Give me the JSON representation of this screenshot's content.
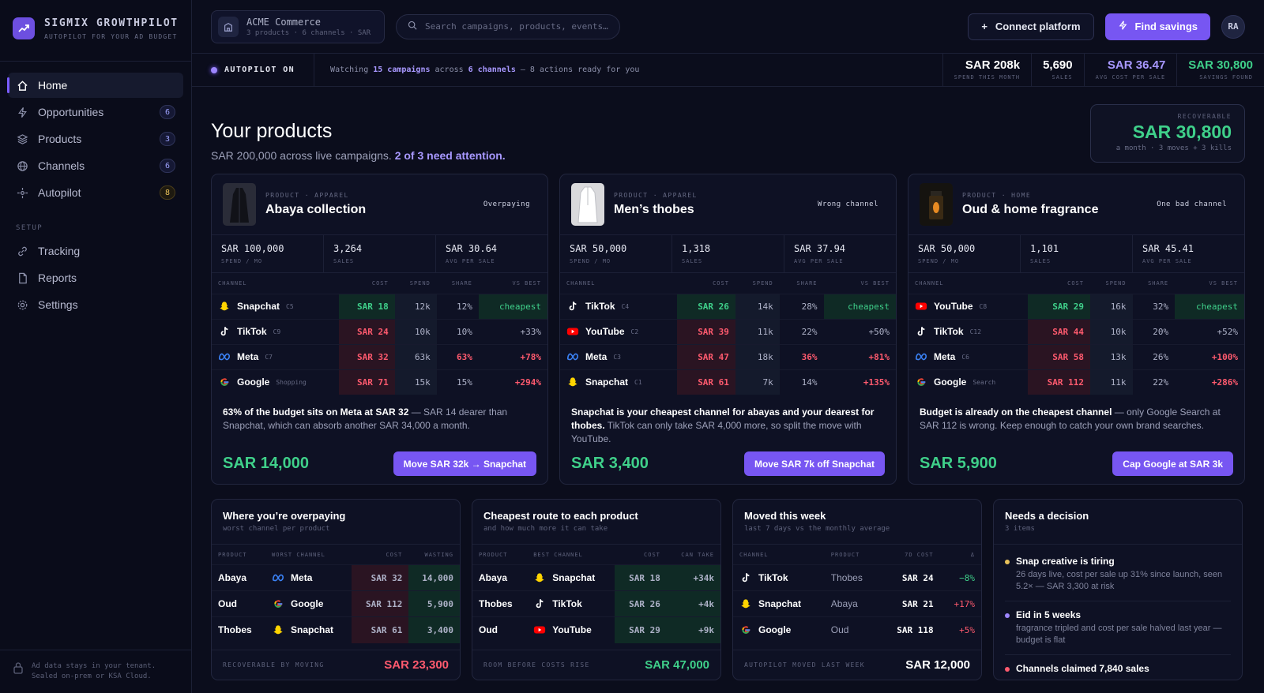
{
  "brand": {
    "name": "SIGMIX GROWTHPILOT",
    "tagline": "AUTOPILOT FOR YOUR AD BUDGET"
  },
  "nav": {
    "items": [
      {
        "label": "Home",
        "icon": "home-icon"
      },
      {
        "label": "Opportunities",
        "icon": "bolt-icon",
        "badge": "6"
      },
      {
        "label": "Products",
        "icon": "layers-icon",
        "badge": "3"
      },
      {
        "label": "Channels",
        "icon": "globe-icon",
        "badge": "6"
      },
      {
        "label": "Autopilot",
        "icon": "crosshair-icon",
        "badge": "8"
      }
    ],
    "section": "SETUP",
    "setup": [
      {
        "label": "Tracking",
        "icon": "link-icon"
      },
      {
        "label": "Reports",
        "icon": "file-icon"
      },
      {
        "label": "Settings",
        "icon": "gear-icon"
      }
    ],
    "footer": "Ad data stays in your tenant. Sealed on-prem or KSA Cloud."
  },
  "topbar": {
    "workspace_name": "ACME Commerce",
    "workspace_sub": "3 products · 6 channels · SAR",
    "search_placeholder": "Search campaigns, products, events…",
    "connect_label": "Connect platform",
    "savings_label": "Find savings",
    "avatar": "RA"
  },
  "status": {
    "autopilot": "AUTOPILOT ON",
    "watch_pre": "Watching ",
    "watch_campaigns": "15 campaigns",
    "watch_mid": " across ",
    "watch_channels": "6 channels",
    "watch_post": " — 8 actions ready for you",
    "kpis": [
      {
        "value": "SAR 208k",
        "label": "SPEND THIS MONTH",
        "color": "#ffffff"
      },
      {
        "value": "5,690",
        "label": "SALES",
        "color": "#ffffff"
      },
      {
        "value": "SAR 36.47",
        "label": "AVG COST PER SALE",
        "color": "#a898ff"
      },
      {
        "value": "SAR 30,800",
        "label": "SAVINGS FOUND",
        "color": "#3fd08a"
      }
    ]
  },
  "hero": {
    "title": "Your products",
    "sub_pre": "SAR 200,000 across live campaigns. ",
    "sub_em": "2 of 3 need attention.",
    "recover_label": "RECOVERABLE",
    "recover_value": "SAR 30,800",
    "recover_sub": "a month · 3 moves + 3 kills"
  },
  "table_headers": [
    "CHANNEL",
    "COST",
    "SPEND",
    "SHARE",
    "VS BEST"
  ],
  "products": [
    {
      "category": "PRODUCT · APPAREL",
      "title": "Abaya collection",
      "tag": "Overpaying",
      "stats": [
        {
          "value": "SAR 100,000",
          "label": "SPEND / MO"
        },
        {
          "value": "3,264",
          "label": "SALES"
        },
        {
          "value": "SAR 30.64",
          "label": "AVG PER SALE"
        }
      ],
      "rows": [
        {
          "channel": "Snapchat",
          "code": "C5",
          "icon": "snapchat-icon",
          "cost": "SAR 18",
          "spend": "12k",
          "share": "12%",
          "vs": "cheapest",
          "best": true
        },
        {
          "channel": "TikTok",
          "code": "C9",
          "icon": "tiktok-icon",
          "cost": "SAR 24",
          "spend": "10k",
          "share": "10%",
          "vs": "+33%",
          "best": false,
          "plain": true
        },
        {
          "channel": "Meta",
          "code": "C7",
          "icon": "meta-icon",
          "cost": "SAR 32",
          "spend": "63k",
          "share": "63%",
          "vs": "+78%",
          "best": false,
          "hot": true
        },
        {
          "channel": "Google",
          "code": "Shopping",
          "icon": "google-icon",
          "cost": "SAR 71",
          "spend": "15k",
          "share": "15%",
          "vs": "+294%",
          "best": false
        }
      ],
      "body_b": "63% of the budget sits on Meta at SAR 32",
      "body": " — SAR 14 dearer than Snapchat, which can absorb another SAR 34,000 a month.",
      "saving": "SAR 14,000",
      "action": "Move SAR 32k → Snapchat"
    },
    {
      "category": "PRODUCT · APPAREL",
      "title": "Men’s thobes",
      "tag": "Wrong channel",
      "stats": [
        {
          "value": "SAR 50,000",
          "label": "SPEND / MO"
        },
        {
          "value": "1,318",
          "label": "SALES"
        },
        {
          "value": "SAR 37.94",
          "label": "AVG PER SALE"
        }
      ],
      "rows": [
        {
          "channel": "TikTok",
          "code": "C4",
          "icon": "tiktok-icon",
          "cost": "SAR 26",
          "spend": "14k",
          "share": "28%",
          "vs": "cheapest",
          "best": true
        },
        {
          "channel": "YouTube",
          "code": "C2",
          "icon": "youtube-icon",
          "cost": "SAR 39",
          "spend": "11k",
          "share": "22%",
          "vs": "+50%",
          "best": false,
          "plain": true
        },
        {
          "channel": "Meta",
          "code": "C3",
          "icon": "meta-icon",
          "cost": "SAR 47",
          "spend": "18k",
          "share": "36%",
          "vs": "+81%",
          "best": false,
          "hot": true
        },
        {
          "channel": "Snapchat",
          "code": "C1",
          "icon": "snapchat-icon",
          "cost": "SAR 61",
          "spend": "7k",
          "share": "14%",
          "vs": "+135%",
          "best": false
        }
      ],
      "body_b": "Snapchat is your cheapest channel for abayas and your dearest for thobes.",
      "body": " TikTok can only take SAR 4,000 more, so split the move with YouTube.",
      "saving": "SAR 3,400",
      "action": "Move SAR 7k off Snapchat"
    },
    {
      "category": "PRODUCT · HOME",
      "title": "Oud & home fragrance",
      "tag": "One bad channel",
      "stats": [
        {
          "value": "SAR 50,000",
          "label": "SPEND / MO"
        },
        {
          "value": "1,101",
          "label": "SALES"
        },
        {
          "value": "SAR 45.41",
          "label": "AVG PER SALE"
        }
      ],
      "rows": [
        {
          "channel": "YouTube",
          "code": "C8",
          "icon": "youtube-icon",
          "cost": "SAR 29",
          "spend": "16k",
          "share": "32%",
          "vs": "cheapest",
          "best": true
        },
        {
          "channel": "TikTok",
          "code": "C12",
          "icon": "tiktok-icon",
          "cost": "SAR 44",
          "spend": "10k",
          "share": "20%",
          "vs": "+52%",
          "best": false,
          "plain": true
        },
        {
          "channel": "Meta",
          "code": "C6",
          "icon": "meta-icon",
          "cost": "SAR 58",
          "spend": "13k",
          "share": "26%",
          "vs": "+100%",
          "best": false
        },
        {
          "channel": "Google",
          "code": "Search",
          "icon": "google-icon",
          "cost": "SAR 112",
          "spend": "11k",
          "share": "22%",
          "vs": "+286%",
          "best": false
        }
      ],
      "body_b": "Budget is already on the cheapest channel",
      "body": " — only Google Search at SAR 112 is wrong. Keep enough to catch your own brand searches.",
      "saving": "SAR 5,900",
      "action": "Cap Google at SAR 3k"
    }
  ],
  "panels": {
    "overpaying": {
      "title": "Where you’re overpaying",
      "sub": "worst channel per product",
      "headers": [
        "PRODUCT",
        "WORST CHANNEL",
        "COST",
        "WASTING"
      ],
      "rows": [
        {
          "product": "Abaya",
          "channel": "Meta",
          "icon": "meta-icon",
          "cost": "SAR 32",
          "value": "14,000"
        },
        {
          "product": "Oud",
          "channel": "Google",
          "icon": "google-icon",
          "cost": "SAR 112",
          "value": "5,900"
        },
        {
          "product": "Thobes",
          "channel": "Snapchat",
          "icon": "snapchat-icon",
          "cost": "SAR 61",
          "value": "3,400"
        }
      ],
      "foot_label": "RECOVERABLE BY MOVING",
      "foot_value": "SAR 23,300"
    },
    "cheapest": {
      "title": "Cheapest route to each product",
      "sub": "and how much more it can take",
      "headers": [
        "PRODUCT",
        "BEST CHANNEL",
        "COST",
        "CAN TAKE"
      ],
      "rows": [
        {
          "product": "Abaya",
          "channel": "Snapchat",
          "icon": "snapchat-icon",
          "cost": "SAR 18",
          "value": "+34k"
        },
        {
          "product": "Thobes",
          "channel": "TikTok",
          "icon": "tiktok-icon",
          "cost": "SAR 26",
          "value": "+4k"
        },
        {
          "product": "Oud",
          "channel": "YouTube",
          "icon": "youtube-icon",
          "cost": "SAR 29",
          "value": "+9k"
        }
      ],
      "foot_label": "ROOM BEFORE COSTS RISE",
      "foot_value": "SAR 47,000"
    },
    "moved": {
      "title": "Moved this week",
      "sub": "last 7 days vs the monthly average",
      "headers": [
        "CHANNEL",
        "PRODUCT",
        "7D COST",
        "Δ"
      ],
      "rows": [
        {
          "channel": "TikTok",
          "icon": "tiktok-icon",
          "product": "Thobes",
          "cost": "SAR 24",
          "delta": "−8%",
          "good": true
        },
        {
          "channel": "Snapchat",
          "icon": "snapchat-icon",
          "product": "Abaya",
          "cost": "SAR 21",
          "delta": "+17%",
          "good": false
        },
        {
          "channel": "Google",
          "icon": "google-icon",
          "product": "Oud",
          "cost": "SAR 118",
          "delta": "+5%",
          "good": false
        }
      ],
      "foot_label": "AUTOPILOT MOVED LAST WEEK",
      "foot_value": "SAR 12,000"
    },
    "decision": {
      "title": "Needs a decision",
      "sub": "3 items",
      "items": [
        {
          "title": "Snap creative is tiring",
          "text": "26 days live, cost per sale up 31% since launch, seen 5.2× — SAR 3,300 at risk",
          "color": "#e8c15a"
        },
        {
          "title": "Eid in 5 weeks",
          "text": "fragrance tripled and cost per sale halved last year — budget is flat",
          "color": "#9d86ff"
        },
        {
          "title": "Channels claimed 7,840 sales",
          "text": "",
          "color": "#ff5a6e"
        }
      ]
    }
  }
}
